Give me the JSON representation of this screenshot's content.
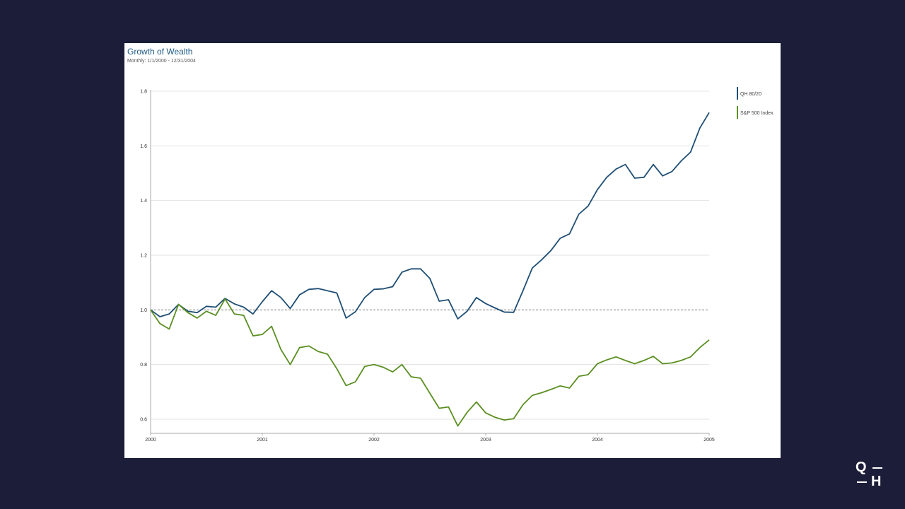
{
  "chart_data": {
    "type": "line",
    "title": "Growth of Wealth",
    "subtitle": "Monthly: 1/1/2000 - 12/31/2004",
    "xlabel": "",
    "ylabel": "",
    "x_start": 2000,
    "x_end": 2005,
    "points_per_year": 12,
    "xticks": [
      "2000",
      "2001",
      "2002",
      "2003",
      "2004",
      "2005"
    ],
    "yticks": [
      "0.6",
      "0.8",
      "1.0",
      "1.2",
      "1.4",
      "1.6",
      "1.8"
    ],
    "ylim": [
      0.55,
      1.8
    ],
    "reference_line": 1.0,
    "grid": true,
    "legend_position": "right",
    "series": [
      {
        "name": "QH 80/20",
        "color": "#1f4e74",
        "values": [
          1.0,
          0.975,
          0.985,
          1.02,
          0.995,
          0.99,
          1.013,
          1.01,
          1.042,
          1.022,
          1.01,
          0.985,
          1.03,
          1.07,
          1.045,
          1.005,
          1.055,
          1.075,
          1.078,
          1.07,
          1.062,
          0.97,
          0.993,
          1.045,
          1.075,
          1.077,
          1.085,
          1.138,
          1.15,
          1.15,
          1.115,
          1.032,
          1.037,
          0.967,
          0.995,
          1.045,
          1.023,
          1.007,
          0.992,
          0.991,
          1.07,
          1.153,
          1.183,
          1.217,
          1.262,
          1.278,
          1.35,
          1.38,
          1.44,
          1.485,
          1.515,
          1.532,
          1.482,
          1.485,
          1.532,
          1.49,
          1.506,
          1.545,
          1.577,
          1.665,
          1.722
        ]
      },
      {
        "name": "S&P 500 Index",
        "color": "#5b8f22",
        "values": [
          1.0,
          0.95,
          0.93,
          1.02,
          0.99,
          0.97,
          0.995,
          0.98,
          1.04,
          0.985,
          0.98,
          0.905,
          0.91,
          0.94,
          0.855,
          0.8,
          0.862,
          0.868,
          0.848,
          0.838,
          0.785,
          0.723,
          0.737,
          0.793,
          0.8,
          0.79,
          0.773,
          0.8,
          0.755,
          0.75,
          0.695,
          0.64,
          0.645,
          0.575,
          0.625,
          0.663,
          0.623,
          0.607,
          0.597,
          0.602,
          0.653,
          0.687,
          0.697,
          0.709,
          0.722,
          0.714,
          0.757,
          0.763,
          0.803,
          0.817,
          0.828,
          0.815,
          0.803,
          0.815,
          0.83,
          0.803,
          0.806,
          0.815,
          0.828,
          0.862,
          0.89
        ]
      }
    ]
  },
  "logo": {
    "text": "Q H"
  }
}
